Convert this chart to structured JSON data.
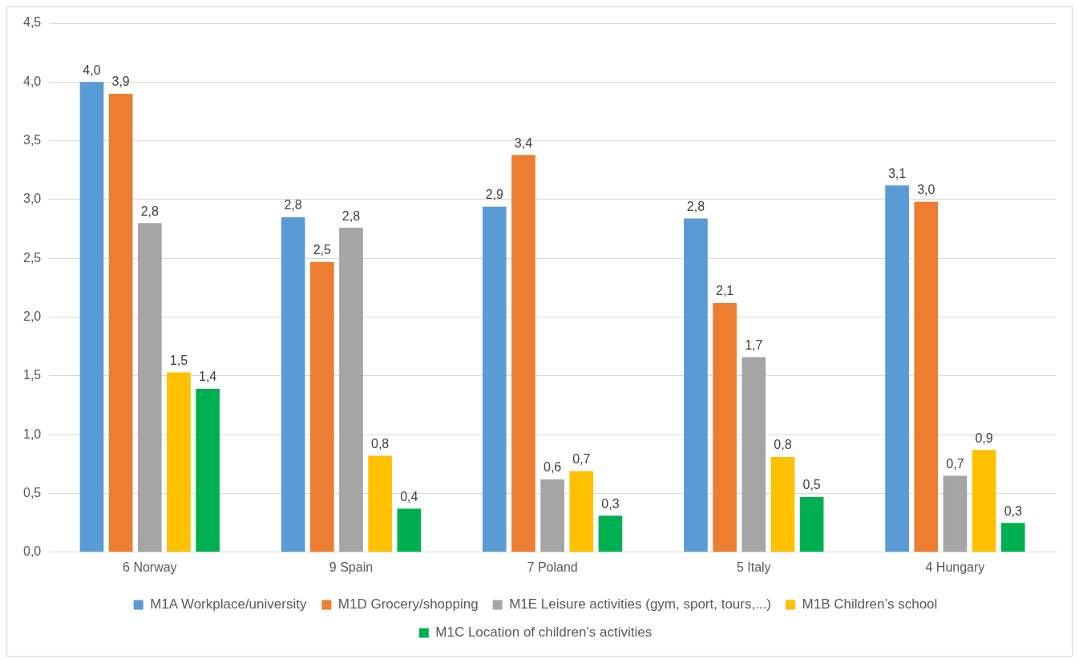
{
  "chart_data": {
    "type": "bar",
    "categories": [
      "6 Norway",
      "9 Spain",
      "7 Poland",
      "5 Italy",
      "4 Hungary"
    ],
    "series": [
      {
        "name": "M1A Workplace/university",
        "color": "#5b9bd5",
        "values": [
          4.0,
          2.85,
          2.94,
          2.84,
          3.12
        ],
        "value_labels": [
          "4,0",
          "2,8",
          "2,9",
          "2,8",
          "3,1"
        ]
      },
      {
        "name": "M1D Grocery/shopping",
        "color": "#ed7d31",
        "values": [
          3.9,
          2.47,
          3.38,
          2.12,
          2.98
        ],
        "value_labels": [
          "3,9",
          "2,5",
          "3,4",
          "2,1",
          "3,0"
        ]
      },
      {
        "name": "M1E Leisure activities (gym, sport, tours,...)",
        "color": "#a5a5a5",
        "values": [
          2.8,
          2.76,
          0.62,
          1.66,
          0.65
        ],
        "value_labels": [
          "2,8",
          "2,8",
          "0,6",
          "1,7",
          "0,7"
        ]
      },
      {
        "name": "M1B Children’s school",
        "color": "#ffc000",
        "values": [
          1.53,
          0.82,
          0.69,
          0.81,
          0.87
        ],
        "value_labels": [
          "1,5",
          "0,8",
          "0,7",
          "0,8",
          "0,9"
        ]
      },
      {
        "name": "M1C Location of children’s activities",
        "color": "#00b050",
        "values": [
          1.39,
          0.37,
          0.31,
          0.47,
          0.25
        ],
        "value_labels": [
          "1,4",
          "0,4",
          "0,3",
          "0,5",
          "0,3"
        ]
      }
    ],
    "ylim": [
      0,
      4.5
    ],
    "yticks": [
      {
        "value": 0,
        "label": "0,0"
      },
      {
        "value": 0.5,
        "label": "0,5"
      },
      {
        "value": 1,
        "label": "1,0"
      },
      {
        "value": 1.5,
        "label": "1,5"
      },
      {
        "value": 2,
        "label": "2,0"
      },
      {
        "value": 2.5,
        "label": "2,5"
      },
      {
        "value": 3,
        "label": "3,0"
      },
      {
        "value": 3.5,
        "label": "3,5"
      },
      {
        "value": 4,
        "label": "4,0"
      },
      {
        "value": 4.5,
        "label": "4,5"
      }
    ],
    "grid": "y",
    "legend": "bottom"
  }
}
